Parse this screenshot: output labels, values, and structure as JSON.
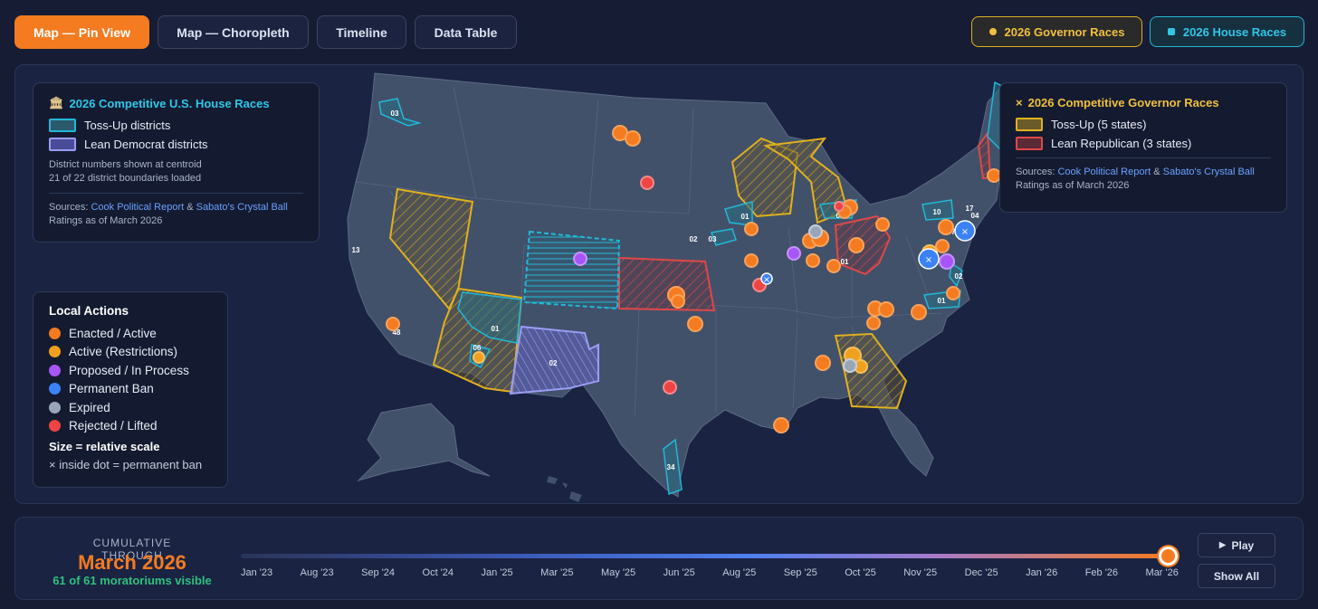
{
  "tabs": [
    {
      "label": "Map — Pin View",
      "active": true
    },
    {
      "label": "Map — Choropleth",
      "active": false
    },
    {
      "label": "Timeline",
      "active": false
    },
    {
      "label": "Data Table",
      "active": false
    }
  ],
  "race_toggles": {
    "governor": "2026 Governor Races",
    "house": "2026 House Races"
  },
  "house_legend": {
    "title": "2026 Competitive U.S. House Races",
    "icon": "capitol-building-icon",
    "items": [
      {
        "label": "Toss-Up districts",
        "color": "#22b8d8"
      },
      {
        "label": "Lean Democrat districts",
        "color": "#7b7ff0"
      }
    ],
    "note_1": "District numbers shown at centroid",
    "note_2": "21 of 22 district boundaries loaded",
    "sources_prefix": "Sources: ",
    "source_a": "Cook Political Report",
    "amp": " & ",
    "source_b": "Sabato's Crystal Ball",
    "ratings": "Ratings as of March 2026"
  },
  "gov_legend": {
    "title": "2026 Competitive Governor Races",
    "icon": "x-mark-icon",
    "icon_glyph": "×",
    "items": [
      {
        "label": "Toss-Up (5 states)",
        "color": "#e0b11f"
      },
      {
        "label": "Lean Republican (3 states)",
        "color": "#e04848"
      }
    ],
    "sources_prefix": "Sources: ",
    "source_a": "Cook Political Report",
    "amp": " & ",
    "source_b": "Sabato's Crystal Ball",
    "ratings": "Ratings as of March 2026"
  },
  "actions_legend": {
    "title": "Local Actions",
    "items": [
      {
        "label": "Enacted / Active",
        "color": "#f47b20"
      },
      {
        "label": "Active (Restrictions)",
        "color": "#f0a020"
      },
      {
        "label": "Proposed / In Process",
        "color": "#a855f7"
      },
      {
        "label": "Permanent Ban",
        "color": "#3b82f6"
      },
      {
        "label": "Expired",
        "color": "#9aa6b8"
      },
      {
        "label": "Rejected / Lifted",
        "color": "#ef4444"
      }
    ],
    "size_title": "Size = relative scale",
    "size_note": "× inside dot = permanent ban"
  },
  "map": {
    "district_labels": [
      "03",
      "13",
      "48",
      "01",
      "06",
      "02",
      "01",
      "02",
      "03",
      "07",
      "01",
      "10",
      "17",
      "04",
      "07",
      "02",
      "01",
      "34"
    ]
  },
  "timeline": {
    "label": "CUMULATIVE THROUGH",
    "current": "March 2026",
    "count_text": "61 of 61 moratoriums visible",
    "progress": 1.0,
    "ticks": [
      "Jan '23",
      "Aug '23",
      "Sep '24",
      "Oct '24",
      "Jan '25",
      "Mar '25",
      "May '25",
      "Jun '25",
      "Aug '25",
      "Sep '25",
      "Oct '25",
      "Nov '25",
      "Dec '25",
      "Jan '26",
      "Feb '26",
      "Mar '26"
    ],
    "play": "Play",
    "play_icon": "play-icon",
    "show_all": "Show All"
  },
  "colors": {
    "accent": "#f47b20",
    "governor": "#e0b11f",
    "house": "#22b8d8",
    "lean_dem": "#7b7ff0",
    "lean_rep": "#e04848"
  }
}
